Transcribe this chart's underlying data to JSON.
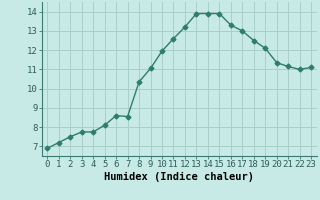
{
  "x": [
    0,
    1,
    2,
    3,
    4,
    5,
    6,
    7,
    8,
    9,
    10,
    11,
    12,
    13,
    14,
    15,
    16,
    17,
    18,
    19,
    20,
    21,
    22,
    23
  ],
  "y": [
    6.9,
    7.2,
    7.5,
    7.75,
    7.75,
    8.1,
    8.6,
    8.55,
    10.35,
    11.05,
    11.95,
    12.6,
    13.2,
    13.9,
    13.9,
    13.9,
    13.3,
    13.0,
    12.5,
    12.1,
    11.35,
    11.15,
    11.0,
    11.1
  ],
  "line_color": "#2e7d6e",
  "bg_color": "#c8eae6",
  "grid_color": "#aacfcb",
  "xlabel": "Humidex (Indice chaleur)",
  "xlim": [
    -0.5,
    23.5
  ],
  "ylim": [
    6.5,
    14.5
  ],
  "yticks": [
    7,
    8,
    9,
    10,
    11,
    12,
    13,
    14
  ],
  "xticks": [
    0,
    1,
    2,
    3,
    4,
    5,
    6,
    7,
    8,
    9,
    10,
    11,
    12,
    13,
    14,
    15,
    16,
    17,
    18,
    19,
    20,
    21,
    22,
    23
  ],
  "xtick_labels": [
    "0",
    "1",
    "2",
    "3",
    "4",
    "5",
    "6",
    "7",
    "8",
    "9",
    "10",
    "11",
    "12",
    "13",
    "14",
    "15",
    "16",
    "17",
    "18",
    "19",
    "20",
    "21",
    "22",
    "23"
  ],
  "marker": "D",
  "markersize": 2.5,
  "linewidth": 1.0,
  "xlabel_fontsize": 7.5,
  "tick_fontsize": 6.5
}
